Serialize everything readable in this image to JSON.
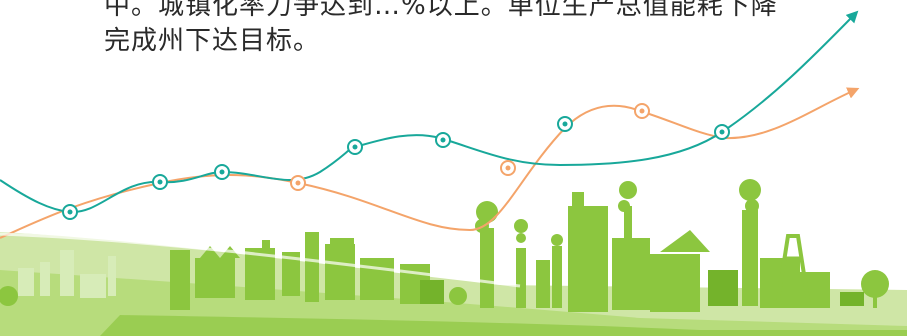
{
  "text": {
    "line1": "中。城镇化率力争达到…%以上。单位生产总值能耗下降",
    "line2": "完成州下达目标。"
  },
  "colors": {
    "teal": "#18a89a",
    "orange": "#f4a46a",
    "green": "#8cc63f",
    "green_dark": "#74b32b",
    "green_light": "#cfe6a6",
    "text": "#2a2a2a"
  },
  "decoration": {
    "trend_lines": [
      "teal-rising-line",
      "orange-rising-line"
    ],
    "skyline": "industrial-city-skyline"
  }
}
